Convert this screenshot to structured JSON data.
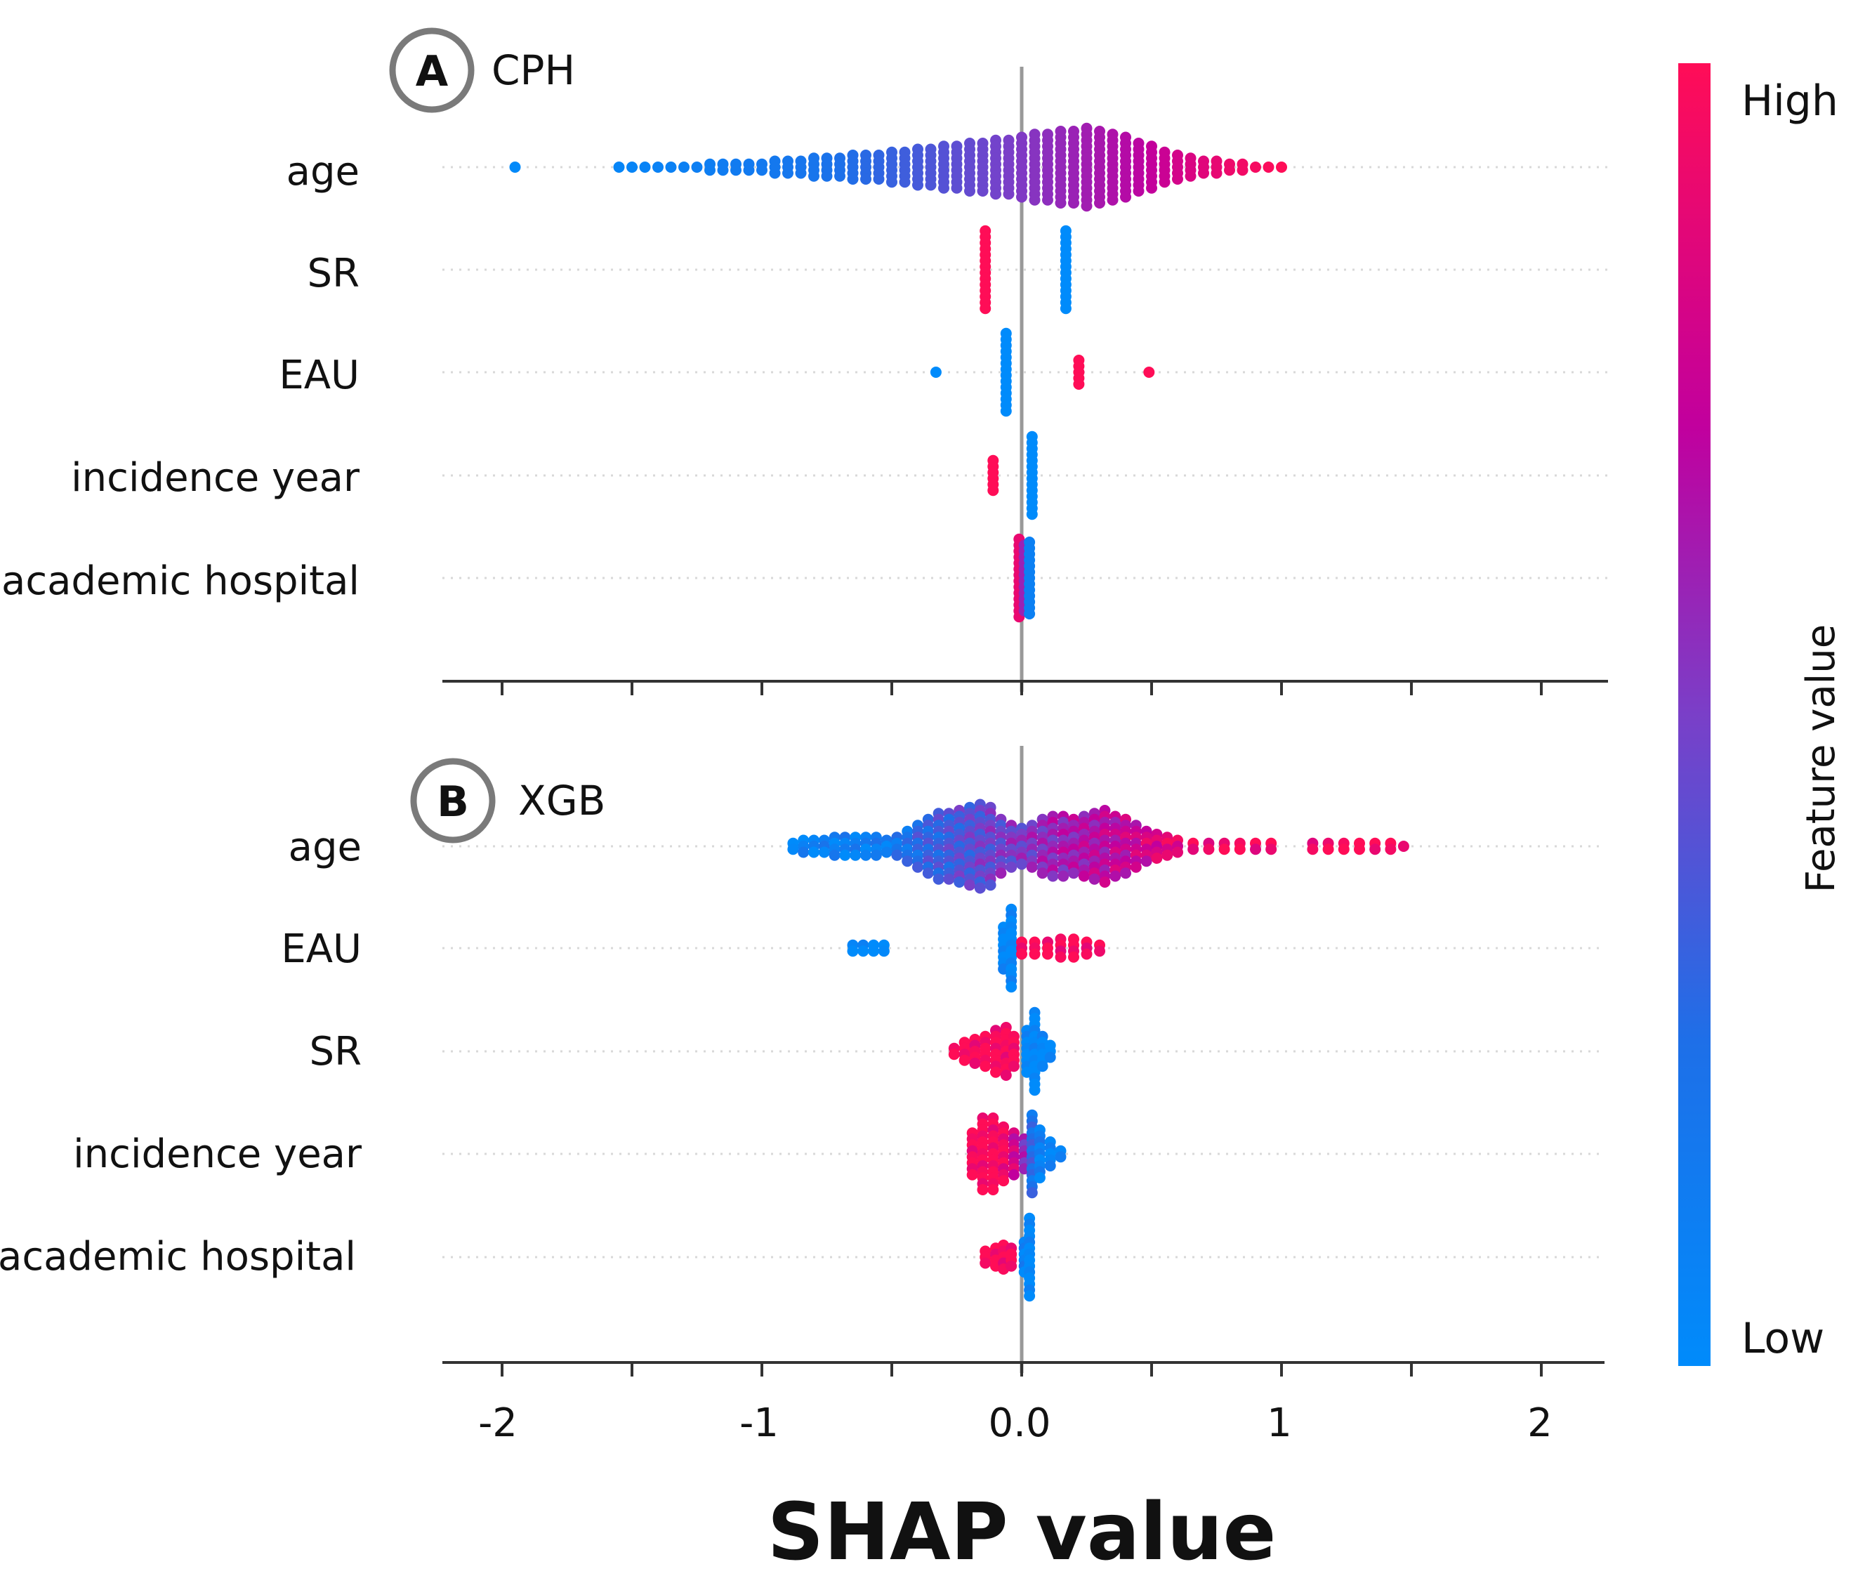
{
  "chart_data": {
    "type": "scatter",
    "subtype": "shap-beeswarm",
    "xlabel": "SHAP value",
    "xlim": [
      -2.25,
      2.25
    ],
    "x_ticks": [
      -2,
      -1.5,
      -1,
      -0.5,
      0,
      0.5,
      1,
      1.5,
      2
    ],
    "x_tick_labels": [
      {
        "value": -2,
        "label": "-2"
      },
      {
        "value": -1,
        "label": "-1"
      },
      {
        "value": 0,
        "label": "0.0"
      },
      {
        "value": 1,
        "label": "1"
      },
      {
        "value": 2,
        "label": "2"
      }
    ],
    "colorbar": {
      "title": "Feature value",
      "high_label": "High",
      "low_label": "Low",
      "high_color": "#ff0d57",
      "mid_color": "#b000a0",
      "low_color": "#1e88e5"
    },
    "panels": [
      {
        "badge": "A",
        "model": "CPH",
        "features": [
          {
            "name": "age",
            "groups": [
              {
                "x": -1.95,
                "n": 1,
                "v": 0.02
              },
              {
                "x": -1.55,
                "n": 1,
                "v": 0.05
              },
              {
                "x": -1.5,
                "n": 1,
                "v": 0.06
              },
              {
                "x": -1.45,
                "n": 1,
                "v": 0.07
              },
              {
                "x": -1.4,
                "n": 1,
                "v": 0.08
              },
              {
                "x": -1.35,
                "n": 1,
                "v": 0.09
              },
              {
                "x": -1.3,
                "n": 1,
                "v": 0.1
              },
              {
                "x": -1.25,
                "n": 1,
                "v": 0.11
              },
              {
                "x": -1.2,
                "n": 2,
                "v": 0.12
              },
              {
                "x": -1.15,
                "n": 2,
                "v": 0.13
              },
              {
                "x": -1.1,
                "n": 2,
                "v": 0.14
              },
              {
                "x": -1.05,
                "n": 2,
                "v": 0.15
              },
              {
                "x": -1.0,
                "n": 2,
                "v": 0.16
              },
              {
                "x": -0.95,
                "n": 3,
                "v": 0.17
              },
              {
                "x": -0.9,
                "n": 3,
                "v": 0.18
              },
              {
                "x": -0.85,
                "n": 3,
                "v": 0.19
              },
              {
                "x": -0.8,
                "n": 4,
                "v": 0.2
              },
              {
                "x": -0.75,
                "n": 4,
                "v": 0.22
              },
              {
                "x": -0.7,
                "n": 4,
                "v": 0.24
              },
              {
                "x": -0.65,
                "n": 5,
                "v": 0.26
              },
              {
                "x": -0.6,
                "n": 5,
                "v": 0.28
              },
              {
                "x": -0.55,
                "n": 5,
                "v": 0.3
              },
              {
                "x": -0.5,
                "n": 6,
                "v": 0.32
              },
              {
                "x": -0.45,
                "n": 6,
                "v": 0.34
              },
              {
                "x": -0.4,
                "n": 7,
                "v": 0.36
              },
              {
                "x": -0.35,
                "n": 7,
                "v": 0.38
              },
              {
                "x": -0.3,
                "n": 8,
                "v": 0.4
              },
              {
                "x": -0.25,
                "n": 8,
                "v": 0.42
              },
              {
                "x": -0.2,
                "n": 9,
                "v": 0.44
              },
              {
                "x": -0.15,
                "n": 9,
                "v": 0.46
              },
              {
                "x": -0.1,
                "n": 10,
                "v": 0.48
              },
              {
                "x": -0.05,
                "n": 10,
                "v": 0.5
              },
              {
                "x": 0.0,
                "n": 11,
                "v": 0.52
              },
              {
                "x": 0.05,
                "n": 12,
                "v": 0.54
              },
              {
                "x": 0.1,
                "n": 12,
                "v": 0.56
              },
              {
                "x": 0.15,
                "n": 13,
                "v": 0.58
              },
              {
                "x": 0.2,
                "n": 13,
                "v": 0.6
              },
              {
                "x": 0.25,
                "n": 14,
                "v": 0.62
              },
              {
                "x": 0.3,
                "n": 13,
                "v": 0.64
              },
              {
                "x": 0.35,
                "n": 12,
                "v": 0.66
              },
              {
                "x": 0.4,
                "n": 11,
                "v": 0.68
              },
              {
                "x": 0.45,
                "n": 9,
                "v": 0.7
              },
              {
                "x": 0.5,
                "n": 8,
                "v": 0.73
              },
              {
                "x": 0.55,
                "n": 6,
                "v": 0.76
              },
              {
                "x": 0.6,
                "n": 5,
                "v": 0.8
              },
              {
                "x": 0.65,
                "n": 4,
                "v": 0.83
              },
              {
                "x": 0.7,
                "n": 3,
                "v": 0.86
              },
              {
                "x": 0.75,
                "n": 3,
                "v": 0.89
              },
              {
                "x": 0.8,
                "n": 2,
                "v": 0.92
              },
              {
                "x": 0.85,
                "n": 2,
                "v": 0.94
              },
              {
                "x": 0.9,
                "n": 1,
                "v": 0.96
              },
              {
                "x": 0.95,
                "n": 1,
                "v": 0.98
              },
              {
                "x": 1.0,
                "n": 1,
                "v": 1.0
              }
            ]
          },
          {
            "name": "SR",
            "groups": [
              {
                "x": -0.14,
                "n": 14,
                "v": 1.0
              },
              {
                "x": 0.17,
                "n": 14,
                "v": 0.0
              }
            ]
          },
          {
            "name": "EAU",
            "groups": [
              {
                "x": -0.33,
                "n": 1,
                "v": 0.0
              },
              {
                "x": -0.06,
                "n": 14,
                "v": 0.0
              },
              {
                "x": 0.22,
                "n": 5,
                "v": 1.0
              },
              {
                "x": 0.49,
                "n": 1,
                "v": 1.0
              }
            ]
          },
          {
            "name": "incidence year",
            "groups": [
              {
                "x": -0.11,
                "n": 6,
                "v": 1.0
              },
              {
                "x": 0.04,
                "n": 14,
                "v": 0.0
              }
            ]
          },
          {
            "name": "academic hospital",
            "groups": [
              {
                "x": -0.01,
                "n": 14,
                "v": 0.9
              },
              {
                "x": 0.01,
                "n": 12,
                "v": 0.6
              },
              {
                "x": 0.03,
                "n": 13,
                "v": 0.1
              }
            ]
          }
        ]
      },
      {
        "badge": "B",
        "model": "XGB",
        "features": [
          {
            "name": "age",
            "groups": [
              {
                "x": -0.88,
                "n": 2,
                "v": 0.05
              },
              {
                "x": -0.84,
                "n": 3,
                "v": 0.06
              },
              {
                "x": -0.8,
                "n": 3,
                "v": 0.07
              },
              {
                "x": -0.76,
                "n": 3,
                "v": 0.08
              },
              {
                "x": -0.72,
                "n": 4,
                "v": 0.09
              },
              {
                "x": -0.68,
                "n": 4,
                "v": 0.1
              },
              {
                "x": -0.64,
                "n": 4,
                "v": 0.11
              },
              {
                "x": -0.6,
                "n": 4,
                "v": 0.12
              },
              {
                "x": -0.56,
                "n": 4,
                "v": 0.13
              },
              {
                "x": -0.52,
                "n": 3,
                "v": 0.14
              },
              {
                "x": -0.48,
                "n": 4,
                "v": 0.17
              },
              {
                "x": -0.44,
                "n": 6,
                "v": 0.22
              },
              {
                "x": -0.4,
                "n": 8,
                "v": 0.28
              },
              {
                "x": -0.36,
                "n": 10,
                "v": 0.3
              },
              {
                "x": -0.32,
                "n": 12,
                "v": 0.32
              },
              {
                "x": -0.28,
                "n": 12,
                "v": 0.35
              },
              {
                "x": -0.24,
                "n": 13,
                "v": 0.38
              },
              {
                "x": -0.2,
                "n": 14,
                "v": 0.4
              },
              {
                "x": -0.16,
                "n": 15,
                "v": 0.44
              },
              {
                "x": -0.12,
                "n": 14,
                "v": 0.46
              },
              {
                "x": -0.08,
                "n": 10,
                "v": 0.48
              },
              {
                "x": -0.04,
                "n": 8,
                "v": 0.5
              },
              {
                "x": 0.0,
                "n": 7,
                "v": 0.52
              },
              {
                "x": 0.04,
                "n": 8,
                "v": 0.54
              },
              {
                "x": 0.08,
                "n": 10,
                "v": 0.56
              },
              {
                "x": 0.12,
                "n": 11,
                "v": 0.6
              },
              {
                "x": 0.16,
                "n": 11,
                "v": 0.62
              },
              {
                "x": 0.2,
                "n": 10,
                "v": 0.64
              },
              {
                "x": 0.24,
                "n": 11,
                "v": 0.66
              },
              {
                "x": 0.28,
                "n": 12,
                "v": 0.68
              },
              {
                "x": 0.32,
                "n": 13,
                "v": 0.7
              },
              {
                "x": 0.36,
                "n": 11,
                "v": 0.72
              },
              {
                "x": 0.4,
                "n": 10,
                "v": 0.74
              },
              {
                "x": 0.44,
                "n": 8,
                "v": 0.77
              },
              {
                "x": 0.48,
                "n": 6,
                "v": 0.8
              },
              {
                "x": 0.52,
                "n": 5,
                "v": 0.82
              },
              {
                "x": 0.56,
                "n": 4,
                "v": 0.85
              },
              {
                "x": 0.6,
                "n": 3,
                "v": 0.88
              },
              {
                "x": 0.66,
                "n": 2,
                "v": 0.92
              },
              {
                "x": 0.72,
                "n": 2,
                "v": 0.94
              },
              {
                "x": 0.78,
                "n": 2,
                "v": 0.95
              },
              {
                "x": 0.84,
                "n": 2,
                "v": 0.96
              },
              {
                "x": 0.9,
                "n": 2,
                "v": 0.97
              },
              {
                "x": 0.96,
                "n": 2,
                "v": 0.98
              },
              {
                "x": 1.12,
                "n": 2,
                "v": 0.98
              },
              {
                "x": 1.18,
                "n": 2,
                "v": 0.99
              },
              {
                "x": 1.24,
                "n": 2,
                "v": 0.99
              },
              {
                "x": 1.3,
                "n": 2,
                "v": 1.0
              },
              {
                "x": 1.36,
                "n": 2,
                "v": 1.0
              },
              {
                "x": 1.42,
                "n": 2,
                "v": 1.0
              },
              {
                "x": 1.47,
                "n": 1,
                "v": 1.0
              }
            ]
          },
          {
            "name": "EAU",
            "groups": [
              {
                "x": -0.65,
                "n": 2,
                "v": 0.0
              },
              {
                "x": -0.61,
                "n": 2,
                "v": 0.0
              },
              {
                "x": -0.57,
                "n": 2,
                "v": 0.0
              },
              {
                "x": -0.53,
                "n": 2,
                "v": 0.0
              },
              {
                "x": -0.07,
                "n": 8,
                "v": 0.0
              },
              {
                "x": -0.04,
                "n": 14,
                "v": 0.0
              },
              {
                "x": 0.0,
                "n": 3,
                "v": 1.0
              },
              {
                "x": 0.05,
                "n": 3,
                "v": 1.0
              },
              {
                "x": 0.1,
                "n": 3,
                "v": 1.0
              },
              {
                "x": 0.15,
                "n": 4,
                "v": 1.0
              },
              {
                "x": 0.2,
                "n": 4,
                "v": 1.0
              },
              {
                "x": 0.25,
                "n": 3,
                "v": 1.0
              },
              {
                "x": 0.3,
                "n": 2,
                "v": 1.0
              }
            ]
          },
          {
            "name": "SR",
            "groups": [
              {
                "x": -0.26,
                "n": 2,
                "v": 1.0
              },
              {
                "x": -0.22,
                "n": 4,
                "v": 1.0
              },
              {
                "x": -0.18,
                "n": 5,
                "v": 1.0
              },
              {
                "x": -0.14,
                "n": 6,
                "v": 1.0
              },
              {
                "x": -0.1,
                "n": 8,
                "v": 1.0
              },
              {
                "x": -0.06,
                "n": 9,
                "v": 1.0
              },
              {
                "x": -0.03,
                "n": 6,
                "v": 1.0
              },
              {
                "x": 0.02,
                "n": 8,
                "v": 0.0
              },
              {
                "x": 0.05,
                "n": 14,
                "v": 0.0
              },
              {
                "x": 0.08,
                "n": 6,
                "v": 0.0
              },
              {
                "x": 0.11,
                "n": 3,
                "v": 0.0
              }
            ]
          },
          {
            "name": "incidence year",
            "groups": [
              {
                "x": -0.19,
                "n": 8,
                "v": 1.0
              },
              {
                "x": -0.15,
                "n": 13,
                "v": 1.0
              },
              {
                "x": -0.11,
                "n": 13,
                "v": 1.0
              },
              {
                "x": -0.07,
                "n": 10,
                "v": 0.95
              },
              {
                "x": -0.03,
                "n": 8,
                "v": 0.8
              },
              {
                "x": 0.01,
                "n": 6,
                "v": 0.55
              },
              {
                "x": 0.04,
                "n": 14,
                "v": 0.25
              },
              {
                "x": 0.07,
                "n": 9,
                "v": 0.1
              },
              {
                "x": 0.11,
                "n": 5,
                "v": 0.05
              },
              {
                "x": 0.15,
                "n": 2,
                "v": 0.0
              }
            ]
          },
          {
            "name": "academic hospital",
            "groups": [
              {
                "x": -0.14,
                "n": 3,
                "v": 1.0
              },
              {
                "x": -0.1,
                "n": 4,
                "v": 1.0
              },
              {
                "x": -0.07,
                "n": 5,
                "v": 1.0
              },
              {
                "x": -0.04,
                "n": 4,
                "v": 1.0
              },
              {
                "x": 0.01,
                "n": 6,
                "v": 0.1
              },
              {
                "x": 0.03,
                "n": 14,
                "v": 0.0
              }
            ]
          }
        ]
      }
    ]
  }
}
